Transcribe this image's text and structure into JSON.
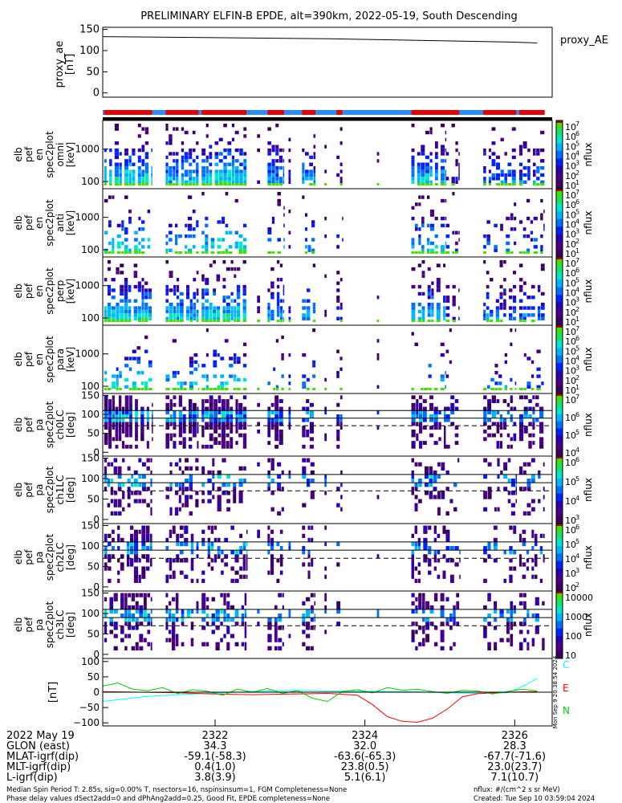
{
  "title": "PRELIMINARY ELFIN-B EPDE, alt=390km, 2022-05-19, South Descending",
  "chart_data": [
    {
      "type": "line",
      "panel": "proxy_ae",
      "ylabel_lines": [
        "proxy_ae",
        "[nT]"
      ],
      "yticks": [
        "150",
        "100",
        "50",
        "0"
      ],
      "ytick_values": [
        150,
        100,
        50,
        0
      ],
      "ylim": [
        -10,
        155
      ],
      "legend": "proxy_AE",
      "x_minutes": [
        0,
        30,
        55,
        58
      ],
      "values": [
        133,
        128,
        120,
        118
      ]
    },
    {
      "type": "bar",
      "panel": "science zone / orbit indicator",
      "blue_segments": [
        [
          0,
          58
        ]
      ],
      "red_segments": [
        [
          0.2,
          6.6
        ],
        [
          8.4,
          12.8
        ],
        [
          13.2,
          19.2
        ],
        [
          22.0,
          24.2
        ],
        [
          26.6,
          28.4
        ],
        [
          31.2,
          32.0
        ],
        [
          41.2,
          47.6
        ],
        [
          50.8,
          55.2
        ],
        [
          55.6,
          59.0
        ]
      ]
    },
    {
      "type": "heatmap",
      "panel": "elb_pef_en_spec2plot_omni",
      "ylabel_lines": [
        "elb",
        "pef",
        "en",
        "spec2plot",
        "omni",
        "[keV]"
      ],
      "yticks": [
        "1000",
        "100"
      ],
      "colorbar_label": "nflux",
      "colorbar_ticks": [
        "10^7",
        "10^6",
        "10^5",
        "10^4",
        "10^3",
        "10^2",
        "10^1"
      ]
    },
    {
      "type": "heatmap",
      "panel": "elb_pef_en_spec2plot_anti",
      "ylabel_lines": [
        "elb",
        "pef",
        "en",
        "spec2plot",
        "anti",
        "[keV]"
      ],
      "yticks": [
        "1000",
        "100"
      ],
      "colorbar_label": "nflux",
      "colorbar_ticks": [
        "10^7",
        "10^6",
        "10^5",
        "10^4",
        "10^3",
        "10^2",
        "10^1"
      ]
    },
    {
      "type": "heatmap",
      "panel": "elb_pef_en_spec2plot_perp",
      "ylabel_lines": [
        "elb",
        "pef",
        "en",
        "spec2plot",
        "perp",
        "[keV]"
      ],
      "yticks": [
        "1000",
        "100"
      ],
      "colorbar_label": "nflux",
      "colorbar_ticks": [
        "10^7",
        "10^6",
        "10^5",
        "10^4",
        "10^3",
        "10^2",
        "10^1"
      ]
    },
    {
      "type": "heatmap",
      "panel": "elb_pef_en_spec2plot_para",
      "ylabel_lines": [
        "elb",
        "pef",
        "en",
        "spec2plot",
        "para",
        "[keV]"
      ],
      "yticks": [
        "1000",
        "100"
      ],
      "colorbar_label": "nflux",
      "colorbar_ticks": [
        "10^7",
        "10^6",
        "10^5",
        "10^4",
        "10^3",
        "10^2",
        "10^1"
      ]
    },
    {
      "type": "heatmap",
      "panel": "elb_pef_pa_spec2plot_ch0LC",
      "ylabel_lines": [
        "elb",
        "pef",
        "pa",
        "spec2plot",
        "ch0LC",
        "[deg]"
      ],
      "yticks": [
        "150",
        "100",
        "50",
        "0"
      ],
      "colorbar_label": "nflux",
      "colorbar_ticks": [
        "10^7",
        "10^6",
        "10^5",
        "10^4"
      ]
    },
    {
      "type": "heatmap",
      "panel": "elb_pef_pa_spec2plot_ch1LC",
      "ylabel_lines": [
        "elb",
        "pef",
        "pa",
        "spec2plot",
        "ch1LC",
        "[deg]"
      ],
      "yticks": [
        "150",
        "100",
        "50",
        "0"
      ],
      "colorbar_label": "nflux",
      "colorbar_ticks": [
        "10^6",
        "10^5",
        "10^4",
        "10^3"
      ]
    },
    {
      "type": "heatmap",
      "panel": "elb_pef_pa_spec2plot_ch2LC",
      "ylabel_lines": [
        "elb",
        "pef",
        "pa",
        "spec2plot",
        "ch2LC",
        "[deg]"
      ],
      "yticks": [
        "150",
        "100",
        "50",
        "0"
      ],
      "colorbar_label": "nflux",
      "colorbar_ticks": [
        "10^6",
        "10^5",
        "10^4",
        "10^3",
        "10^2"
      ]
    },
    {
      "type": "heatmap",
      "panel": "elb_pef_pa_spec2plot_ch3LC",
      "ylabel_lines": [
        "elb",
        "pef",
        "pa",
        "spec2plot",
        "ch3LC",
        "[deg]"
      ],
      "yticks": [
        "150",
        "100",
        "50",
        "0"
      ],
      "colorbar_label": "nflux",
      "colorbar_ticks": [
        "10000",
        "1000",
        "100",
        "10"
      ]
    },
    {
      "type": "line",
      "panel": "magnetic field residuals",
      "ylabel_lines": [
        "[nT]"
      ],
      "yticks": [
        "100",
        "50",
        "0",
        "−50",
        "−100"
      ],
      "ytick_values": [
        100,
        50,
        0,
        -50,
        -100
      ],
      "ylim": [
        -110,
        110
      ],
      "side_text": "Mon Sep 9 20:38:54 2024",
      "series": [
        {
          "name": "C",
          "color": "#00ffff",
          "x_minutes": [
            0,
            3,
            6,
            10,
            14,
            18,
            20,
            22,
            26,
            30,
            34,
            38,
            42,
            46,
            50,
            54,
            56,
            58
          ],
          "values": [
            -30,
            -22,
            -14,
            -8,
            -4,
            0,
            2,
            4,
            6,
            4,
            3,
            2,
            1,
            -2,
            -4,
            -2,
            18,
            45
          ]
        },
        {
          "name": "E",
          "color": "#ff0000",
          "x_minutes": [
            0,
            5,
            10,
            15,
            20,
            25,
            30,
            34,
            36,
            38,
            40,
            42,
            44,
            46,
            48,
            50,
            54,
            58
          ],
          "values": [
            2,
            0,
            -2,
            -6,
            -8,
            -6,
            -4,
            -10,
            -40,
            -80,
            -95,
            -98,
            -85,
            -55,
            -15,
            -5,
            0,
            2
          ]
        },
        {
          "name": "N",
          "color": "#00cc00",
          "x_minutes": [
            0,
            2,
            4,
            6,
            8,
            10,
            12,
            14,
            16,
            18,
            20,
            22,
            24,
            26,
            28,
            30,
            32,
            34,
            36,
            38,
            40,
            42,
            44,
            46,
            48,
            50,
            52,
            54,
            56,
            58
          ],
          "values": [
            20,
            30,
            10,
            5,
            15,
            -5,
            8,
            3,
            -10,
            10,
            0,
            12,
            -4,
            5,
            -20,
            -30,
            2,
            8,
            -2,
            15,
            6,
            10,
            2,
            -4,
            6,
            4,
            -6,
            2,
            10,
            4
          ]
        }
      ]
    }
  ],
  "time_axis": {
    "ticks": [
      "2322",
      "2324",
      "2326"
    ],
    "tick_minutes": [
      15,
      35,
      55
    ],
    "row_labels": [
      "2022 May 19",
      "GLON (east)",
      "MLAT-igrf(dip)",
      "MLT-igrf(dip)",
      "L-igrf(dip)"
    ],
    "glon": [
      "34.3",
      "32.0",
      "28.3"
    ],
    "mlat": [
      "-59.1(-58.3)",
      "-63.6(-65.3)",
      "-67.7(-71.6)"
    ],
    "mlt": [
      "0.4(1.0)",
      "23.8(0.5)",
      "23.0(23.7)"
    ],
    "lval": [
      "3.8(3.9)",
      "5.1(6.1)",
      "7.1(10.7)"
    ]
  },
  "footer": {
    "line1_left": "Median Spin Period T: 2.85s, sig=0.00% T, nsectors=16, nspinsinsum=1, FGM Completeness=None",
    "line2_left": "Phase delay values dSect2add=0 and dPhAng2add=0.25, Good Fit, EPDE completeness=None",
    "line1_right": "nflux: #/(cm^2 s sr MeV)",
    "line2_right": "Created: Tue Sep 10 03:59:04 2024"
  },
  "colors": {
    "bar_blue": "#2a8cff",
    "bar_red": "#e60000",
    "ticks": "#000000"
  }
}
